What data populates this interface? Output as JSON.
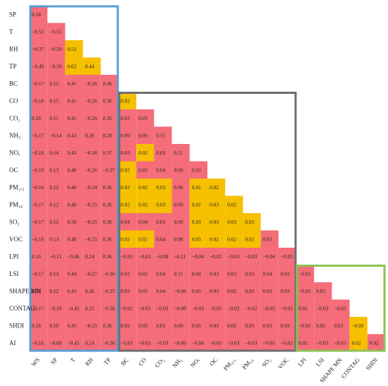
{
  "chart_data": {
    "type": "heatmap",
    "title": "",
    "row_labels": [
      "SP",
      "T",
      "RH",
      "TP",
      "BC",
      "CO",
      "CO₂",
      "NH₃",
      "NOₓ",
      "OC",
      "PM₂.₅",
      "PM₁₀",
      "SO₂",
      "VOC",
      "LPI",
      "LSI",
      "SHAPE MN",
      "CONTAG",
      "SHDI",
      "AI"
    ],
    "col_labels": [
      "WS",
      "SP",
      "T",
      "RH",
      "TP",
      "BC",
      "CO",
      "CO₂",
      "NH₃",
      "NOₓ",
      "OC",
      "PM₂.₅",
      "PM₁₀",
      "SO₂",
      "VOC",
      "LPI",
      "LSI",
      "SHAPE MN",
      "CONTAG",
      "SHDI"
    ],
    "values": [
      [
        "0.24"
      ],
      [
        "−0.52",
        "−0.55"
      ],
      [
        "−0.37",
        "−0.29",
        "0.52"
      ],
      [
        "−0.49",
        "−0.39",
        "0.62",
        "0.44"
      ],
      [
        "−0.17",
        "0.15",
        "0.41",
        "−0.26",
        "0.36"
      ],
      [
        "−0.18",
        "0.15",
        "0.41",
        "−0.26",
        "0.36",
        "0.02"
      ],
      [
        "0.18",
        "0.11",
        "0.41",
        "−0.26",
        "0.35",
        "0.03",
        "0.03"
      ],
      [
        "−0.17",
        "−0.14",
        "0.43",
        "0.26",
        "0.39",
        "0.09",
        "0.09",
        "0.11"
      ],
      [
        "−0.18",
        "0.14",
        "0.42",
        "−0.26",
        "0.37",
        "0.03",
        "0.02",
        "0.03",
        "0.11"
      ],
      [
        "−0.18",
        "0.13",
        "0.40",
        "−0.26",
        "−0.37",
        "0.02",
        "0.03",
        "0.04",
        "0.09",
        "0.03"
      ],
      [
        "−0.16",
        "0.12",
        "0.40",
        "−0.24",
        "0.36",
        "0.02",
        "0.02",
        "0.03",
        "0.08",
        "0.02",
        "0.02"
      ],
      [
        "−0.17",
        "0.12",
        "0.40",
        "−0.25",
        "0.36",
        "0.02",
        "0.02",
        "0.03",
        "0.09",
        "0.02",
        "0.03",
        "0.02"
      ],
      [
        "−0.17",
        "0.12",
        "0.39",
        "−0.25",
        "0.36",
        "0.04",
        "0.04",
        "0.03",
        "0.09",
        "0.03",
        "0.03",
        "0.03",
        "0.03"
      ],
      [
        "−0.18",
        "0.13",
        "0.40",
        "−0.25",
        "0.36",
        "0.02",
        "0.02",
        "0.04",
        "0.08",
        "0.03",
        "0.02",
        "0.02",
        "0.02",
        "0.03"
      ],
      [
        "0.16",
        "−0.11",
        "−0.46",
        "0.24",
        "0.36",
        "−0.03",
        "−0.03",
        "−0.08",
        "−0.11",
        "−0.04",
        "−0.03",
        "−0.03",
        "−0.03",
        "−0.04",
        "−0.03"
      ],
      [
        "−0.17",
        "0.14",
        "0.44",
        "−0.27",
        "−0.36",
        "0.03",
        "0.03",
        "0.04",
        "0.11",
        "0.04",
        "0.03",
        "0.03",
        "0.03",
        "0.04",
        "0.03",
        "−0.03"
      ],
      [
        "0.18",
        "0.12",
        "0.43",
        "0.26",
        "−0.37",
        "0.03",
        "0.03",
        "0.04",
        "−0.08",
        "0.03",
        "0.03",
        "0.02",
        "0.03",
        "0.03",
        "0.03",
        "−0.03",
        "0.03"
      ],
      [
        "−0.17",
        "−0.10",
        "−0.45",
        "0.25",
        "−0.36",
        "−0.02",
        "−0.03",
        "−0.03",
        "−0.08",
        "−0.03",
        "−0.03",
        "−0.02",
        "−0.02",
        "−0.03",
        "−0.03",
        "0.02",
        "−0.03",
        "−0.03"
      ],
      [
        "0.18",
        "0.10",
        "0.45",
        "−0.25",
        "0.36",
        "0.02",
        "0.03",
        "0.03",
        "0.09",
        "0.03",
        "0.03",
        "0.02",
        "0.03",
        "0.03",
        "0.03",
        "−0.02",
        "0.03",
        "0.03",
        "−0.01"
      ],
      [
        "−0.16",
        "−0.09",
        "−0.45",
        "0.24",
        "−0.36",
        "−0.03",
        "−0.03",
        "−0.03",
        "−0.09",
        "−0.04",
        "−0.03",
        "−0.03",
        "−0.03",
        "−0.03",
        "−0.03",
        "0.02",
        "−0.03",
        "−0.03",
        "0.02",
        "0.02"
      ]
    ],
    "highlighted_cells": [
      [
        2,
        2
      ],
      [
        3,
        2
      ],
      [
        3,
        3
      ],
      [
        5,
        5
      ],
      [
        8,
        6
      ],
      [
        9,
        5
      ],
      [
        10,
        5
      ],
      [
        10,
        6
      ],
      [
        10,
        7
      ],
      [
        10,
        9
      ],
      [
        10,
        10
      ],
      [
        11,
        5
      ],
      [
        11,
        6
      ],
      [
        11,
        7
      ],
      [
        11,
        9
      ],
      [
        11,
        10
      ],
      [
        11,
        11
      ],
      [
        12,
        9
      ],
      [
        12,
        10
      ],
      [
        12,
        11
      ],
      [
        12,
        12
      ],
      [
        13,
        5
      ],
      [
        13,
        6
      ],
      [
        13,
        9
      ],
      [
        13,
        10
      ],
      [
        13,
        11
      ],
      [
        13,
        12
      ],
      [
        18,
        18
      ],
      [
        19,
        18
      ]
    ],
    "colors": {
      "cell": "#f46d79",
      "highlight": "#f6c000",
      "box_blue": "#5b9bd5",
      "box_gray": "#6e6e6e",
      "box_green": "#8cc152",
      "text": "#222222"
    },
    "groups": [
      {
        "color": "box_blue",
        "rows": [
          0,
          19
        ],
        "cols": [
          0,
          4
        ]
      },
      {
        "color": "box_gray",
        "rows": [
          5,
          19
        ],
        "cols": [
          5,
          14
        ]
      },
      {
        "color": "box_green",
        "rows": [
          15,
          19
        ],
        "cols": [
          15,
          19
        ]
      }
    ]
  }
}
